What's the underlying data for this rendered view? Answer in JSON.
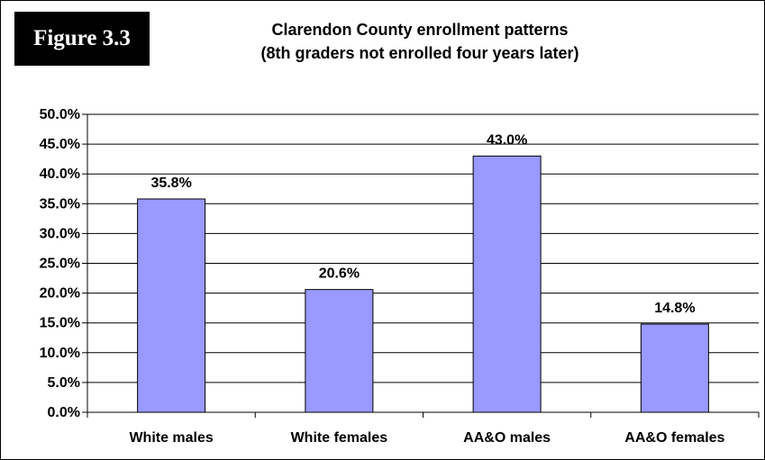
{
  "figure_label": "Figure 3.3",
  "title_lines": [
    "Clarendon County enrollment patterns",
    "(8th graders not enrolled four years later)"
  ],
  "colors": {
    "bar_fill": "#9999ff",
    "bar_stroke": "#000000",
    "grid": "#000000",
    "label_bg": "#000000",
    "label_text": "#ffffff"
  },
  "chart_data": {
    "type": "bar",
    "title": "Clarendon County enrollment patterns (8th graders not enrolled four years later)",
    "categories": [
      "White males",
      "White females",
      "AA&O males",
      "AA&O females"
    ],
    "values": [
      35.8,
      20.6,
      43.0,
      14.8
    ],
    "data_labels": [
      "35.8%",
      "20.6%",
      "43.0%",
      "14.8%"
    ],
    "y_ticks": [
      0,
      5,
      10,
      15,
      20,
      25,
      30,
      35,
      40,
      45,
      50
    ],
    "y_tick_labels": [
      "0.0%",
      "5.0%",
      "10.0%",
      "15.0%",
      "20.0%",
      "25.0%",
      "30.0%",
      "35.0%",
      "40.0%",
      "45.0%",
      "50.0%"
    ],
    "ylim": [
      0,
      50
    ],
    "grid": true,
    "legend": "none",
    "xlabel": "",
    "ylabel": ""
  }
}
